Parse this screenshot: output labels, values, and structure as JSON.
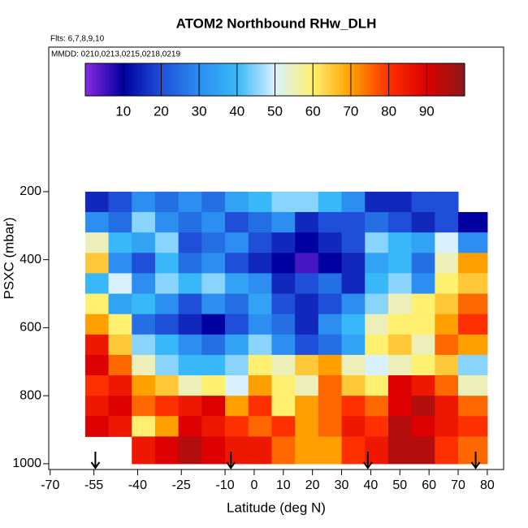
{
  "chart_data": {
    "type": "heatmap",
    "title": "ATOM2 Northbound RHw_DLH",
    "annotations": [
      "Flts: 6,7,8,9,10",
      "MMDD: 0210,0213,0215,0218,0219"
    ],
    "xlabel": "Latitude (deg N)",
    "ylabel": "PSXC (mbar)",
    "xlim": [
      -70.5,
      85.6
    ],
    "ylim": [
      1017,
      -225
    ],
    "xticks": [
      -70,
      -55,
      -40,
      -25,
      -10,
      0,
      10,
      20,
      30,
      40,
      50,
      60,
      70,
      80
    ],
    "yticks": [
      200,
      400,
      600,
      800,
      1000
    ],
    "x_edges": [
      -58,
      -50,
      -42,
      -34,
      -26,
      -18,
      -10,
      -2,
      6,
      14,
      22,
      30,
      38,
      46,
      54,
      62,
      70,
      80
    ],
    "y_edges": [
      200,
      260,
      320,
      380,
      440,
      500,
      560,
      620,
      680,
      740,
      800,
      860,
      920,
      1000
    ],
    "z": [
      [
        15,
        20,
        30,
        25,
        30,
        25,
        35,
        40,
        45,
        45,
        40,
        30,
        15,
        15,
        20,
        20,
        null
      ],
      [
        30,
        25,
        45,
        30,
        25,
        30,
        20,
        25,
        30,
        15,
        20,
        20,
        25,
        20,
        15,
        20,
        10
      ],
      [
        55,
        40,
        35,
        45,
        20,
        25,
        30,
        20,
        15,
        10,
        15,
        20,
        45,
        40,
        35,
        50,
        30
      ],
      [
        65,
        30,
        20,
        40,
        25,
        30,
        20,
        15,
        10,
        5,
        10,
        15,
        35,
        40,
        25,
        55,
        70
      ],
      [
        40,
        50,
        30,
        45,
        40,
        45,
        35,
        30,
        15,
        20,
        25,
        15,
        40,
        45,
        30,
        60,
        65
      ],
      [
        60,
        35,
        40,
        30,
        20,
        30,
        25,
        35,
        20,
        15,
        20,
        30,
        45,
        55,
        60,
        65,
        75
      ],
      [
        70,
        60,
        25,
        20,
        15,
        10,
        20,
        30,
        25,
        15,
        30,
        40,
        55,
        60,
        60,
        70,
        80
      ],
      [
        85,
        65,
        45,
        40,
        30,
        25,
        35,
        45,
        30,
        20,
        25,
        35,
        60,
        65,
        55,
        75,
        70
      ],
      [
        90,
        75,
        55,
        45,
        40,
        40,
        45,
        60,
        55,
        65,
        70,
        55,
        50,
        55,
        60,
        65,
        45
      ],
      [
        80,
        85,
        70,
        65,
        55,
        60,
        50,
        70,
        60,
        55,
        75,
        65,
        60,
        90,
        85,
        75,
        55
      ],
      [
        85,
        90,
        75,
        80,
        85,
        90,
        70,
        80,
        60,
        70,
        75,
        80,
        75,
        90,
        95,
        85,
        75
      ],
      [
        90,
        85,
        60,
        70,
        90,
        85,
        80,
        75,
        80,
        70,
        75,
        85,
        80,
        95,
        90,
        85,
        80
      ],
      [
        null,
        null,
        85,
        90,
        95,
        90,
        85,
        85,
        75,
        70,
        70,
        80,
        85,
        95,
        95,
        80,
        75
      ]
    ],
    "colorbar": {
      "lim": [
        0,
        100
      ],
      "ticks": [
        10,
        20,
        30,
        40,
        50,
        60,
        70,
        80,
        90
      ],
      "colors": [
        "#8a2be2",
        "#0000a0",
        "#1f4fd8",
        "#2b8ef0",
        "#38b8f8",
        "#d8f0ff",
        "#fff070",
        "#ffa000",
        "#ff3000",
        "#dd0000",
        "#8b1a1a"
      ]
    },
    "arrows": [
      -54.5,
      -8,
      39,
      76
    ]
  }
}
